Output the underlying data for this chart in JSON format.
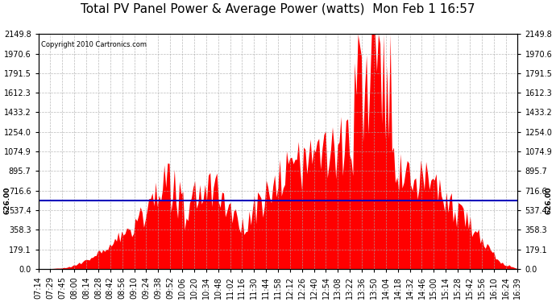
{
  "title": "Total PV Panel Power & Average Power (watts)  Mon Feb 1 16:57",
  "copyright": "Copyright 2010 Cartronics.com",
  "average_power": 626.0,
  "ylim": [
    0,
    2149.8
  ],
  "yticks": [
    0.0,
    179.1,
    358.3,
    537.4,
    716.6,
    895.7,
    1074.9,
    1254.0,
    1433.2,
    1612.3,
    1791.5,
    1970.6,
    2149.8
  ],
  "bar_color": "#FF0000",
  "avg_line_color": "#0000BB",
  "background_color": "#FFFFFF",
  "grid_color": "#AAAAAA",
  "title_fontsize": 11,
  "tick_fontsize": 7,
  "xtick_labels": [
    "07:14",
    "07:29",
    "07:45",
    "08:00",
    "08:14",
    "08:28",
    "08:42",
    "08:56",
    "09:10",
    "09:24",
    "09:38",
    "09:52",
    "10:06",
    "10:20",
    "10:34",
    "10:48",
    "11:02",
    "11:16",
    "11:30",
    "11:44",
    "11:58",
    "12:12",
    "12:26",
    "12:40",
    "12:54",
    "13:08",
    "13:22",
    "13:36",
    "13:50",
    "14:04",
    "14:18",
    "14:32",
    "14:46",
    "15:00",
    "15:14",
    "15:28",
    "15:42",
    "15:56",
    "16:10",
    "16:24",
    "16:39"
  ],
  "avg_label": "626.00"
}
